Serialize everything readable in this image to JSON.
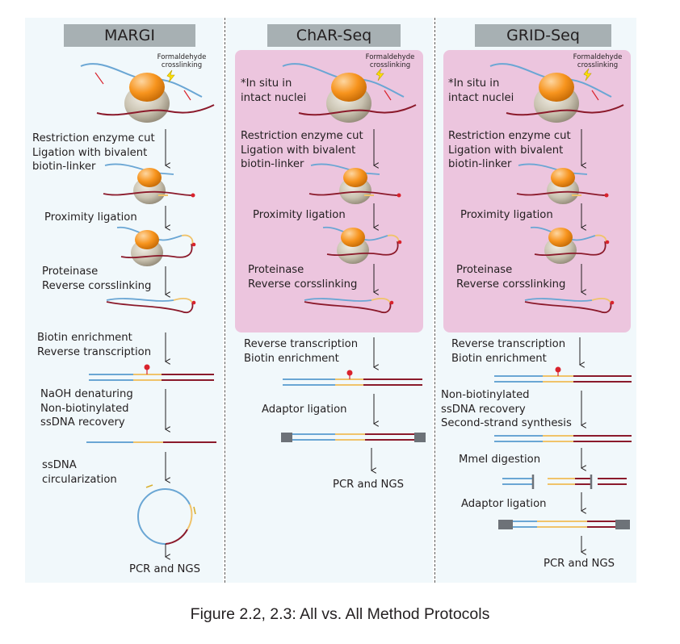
{
  "caption": "Figure 2.2, 2.3: All vs. All Method Protocols",
  "colors": {
    "rna": "#6aa6d4",
    "dna": "#8b1a2b",
    "linker": "#f0c36a",
    "protein": "#f7941d",
    "nucleosome": "#c9c2b0",
    "pink_box": "#ecc5de",
    "header": "#a7b0b3",
    "adaptor": "#6d7278",
    "biotin": "#d9232d"
  },
  "icons": {
    "crosslink": "lightning-bolt-icon"
  },
  "panels": [
    {
      "title": "MARGI",
      "annotation": "Formaldehyde\ncrosslinking",
      "steps": [
        "Restriction enzyme cut\nLigation with bivalent\nbiotin-linker",
        "Proximity ligation",
        "Proteinase\nReverse corsslinking",
        "Biotin enrichment\nReverse transcription",
        "NaOH denaturing\nNon-biotinylated\nssDNA recovery",
        "ssDNA\ncircularization",
        "PCR and NGS"
      ]
    },
    {
      "title": "ChAR-Seq",
      "annotation": "Formaldehyde\ncrosslinking",
      "steps": [
        "*In situ in\nintact nuclei",
        "Restriction enzyme cut\nLigation with bivalent\nbiotin-linker",
        "Proximity ligation",
        "Proteinase\nReverse corsslinking",
        "Reverse transcription\nBiotin enrichment",
        "Adaptor ligation",
        "PCR and NGS"
      ]
    },
    {
      "title": "GRID-Seq",
      "annotation": "Formaldehyde\ncrosslinking",
      "steps": [
        "*In situ in\nintact nuclei",
        "Restriction enzyme cut\nLigation with bivalent\nbiotin-linker",
        "Proximity ligation",
        "Proteinase\nReverse corsslinking",
        "Reverse transcription\nBiotin enrichment",
        "Non-biotinylated\nssDNA recovery\nSecond-strand synthesis",
        "MmeI digestion",
        "Adaptor ligation",
        "PCR and NGS"
      ]
    }
  ]
}
